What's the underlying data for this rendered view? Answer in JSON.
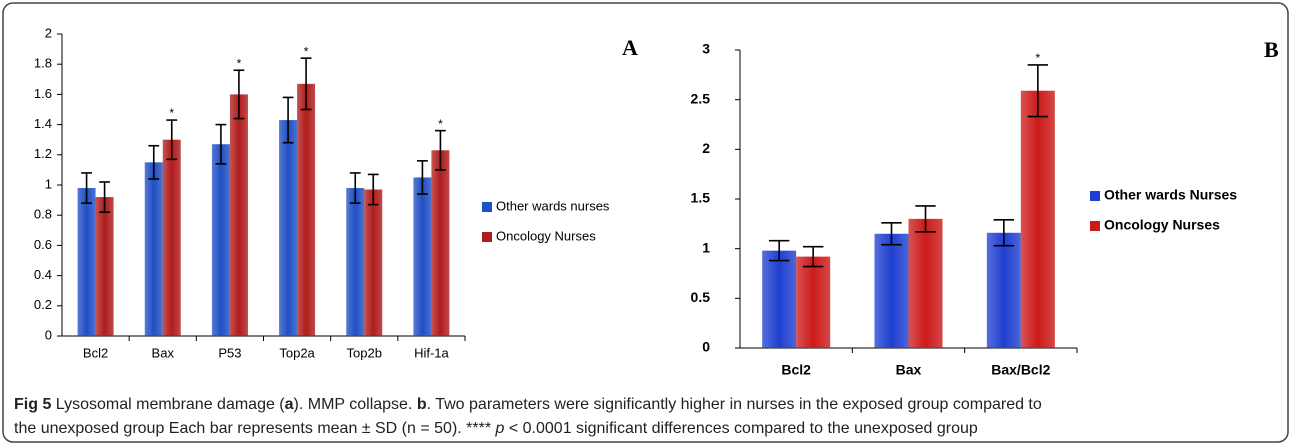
{
  "chart_data": [
    {
      "type": "bar",
      "panel": "A",
      "categories": [
        "Bcl2",
        "Bax",
        "P53",
        "Top2a",
        "Top2b",
        "Hif-1a"
      ],
      "series": [
        {
          "name": "Other wards nurses",
          "color": "#1f4fc4",
          "values": [
            0.98,
            1.15,
            1.27,
            1.43,
            0.98,
            1.05
          ],
          "errors": [
            0.1,
            0.11,
            0.13,
            0.15,
            0.1,
            0.11
          ],
          "significance": [
            null,
            null,
            null,
            null,
            null,
            null
          ]
        },
        {
          "name": "Oncology Nurses",
          "color": "#b01c1c",
          "values": [
            0.92,
            1.3,
            1.6,
            1.67,
            0.97,
            1.23
          ],
          "errors": [
            0.1,
            0.13,
            0.16,
            0.17,
            0.1,
            0.13
          ],
          "significance": [
            null,
            "*",
            "*",
            "*",
            null,
            "*"
          ]
        }
      ],
      "ylim": [
        0,
        2
      ],
      "yticks": [
        0,
        0.2,
        0.4,
        0.6,
        0.8,
        1,
        1.2,
        1.4,
        1.6,
        1.8,
        2
      ],
      "bold_labels": false
    },
    {
      "type": "bar",
      "panel": "B",
      "categories": [
        "Bcl2",
        "Bax",
        "Bax/Bcl2"
      ],
      "series": [
        {
          "name": "Other wards Nurses",
          "color": "#1f3fd0",
          "values": [
            0.98,
            1.15,
            1.16
          ],
          "errors": [
            0.1,
            0.11,
            0.13
          ],
          "significance": [
            null,
            null,
            null
          ]
        },
        {
          "name": "Oncology Nurses",
          "color": "#cc1a1a",
          "values": [
            0.92,
            1.3,
            2.59
          ],
          "errors": [
            0.1,
            0.13,
            0.26
          ],
          "significance": [
            null,
            null,
            "*"
          ]
        }
      ],
      "ylim": [
        0,
        3
      ],
      "yticks": [
        0,
        0.5,
        1,
        1.5,
        2,
        2.5,
        3
      ],
      "bold_labels": true
    }
  ],
  "caption": [
    [
      {
        "text": "Fig 5",
        "style": "bold"
      },
      {
        "text": " Lysosomal membrane damage (",
        "style": "normal"
      },
      {
        "text": "a",
        "style": "bold"
      },
      {
        "text": "). MMP collapse. ",
        "style": "normal"
      },
      {
        "text": "b",
        "style": "bold"
      },
      {
        "text": ". Two parameters were significantly higher in nurses in the exposed group compared to",
        "style": "normal"
      }
    ],
    [
      {
        "text": "the unexposed group Each bar represents mean ± SD (n = 50). **** ",
        "style": "normal"
      },
      {
        "text": "p",
        "style": "italic"
      },
      {
        "text": " < 0.0001 significant differences compared to the unexposed group",
        "style": "normal"
      }
    ]
  ]
}
